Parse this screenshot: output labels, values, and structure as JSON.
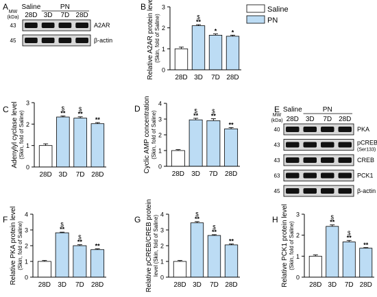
{
  "colors": {
    "saline": "#ffffff",
    "pn": "#bcdcf4",
    "band": "#111111",
    "blot_bg": "#d8d8d8"
  },
  "legend": {
    "saline": "Saline",
    "pn": "PN"
  },
  "blot_A": {
    "letter": "A",
    "mw_header": [
      "MW",
      "(kDa)"
    ],
    "group_labels": {
      "saline": "Saline",
      "pn": "PN"
    },
    "lanes": [
      "28D",
      "3D",
      "7D",
      "28D"
    ],
    "rows": [
      {
        "mw": "43",
        "label": "A2AR",
        "sub": ""
      },
      {
        "mw": "45",
        "label": "β-actin",
        "sub": ""
      }
    ]
  },
  "blot_E": {
    "letter": "E",
    "mw_header": [
      "MW",
      "(kDa)"
    ],
    "group_labels": {
      "saline": "Saline",
      "pn": "PN"
    },
    "lanes": [
      "28D",
      "3D",
      "7D",
      "28D"
    ],
    "rows": [
      {
        "mw": "40",
        "label": "PKA",
        "sub": ""
      },
      {
        "mw": "43",
        "label": "pCREB",
        "sub": "(Ser133)"
      },
      {
        "mw": "43",
        "label": "CREB",
        "sub": ""
      },
      {
        "mw": "63",
        "label": "PCK1",
        "sub": ""
      },
      {
        "mw": "45",
        "label": "β-actin",
        "sub": ""
      }
    ]
  },
  "chart_data": [
    {
      "panel": "B",
      "type": "bar",
      "ylabel": "Relative A2AR protein level",
      "ylabel_sub": "(Skin, fold of Saline)",
      "categories": [
        "28D",
        "3D",
        "7D",
        "28D"
      ],
      "groups": [
        "saline",
        "pn",
        "pn",
        "pn"
      ],
      "values": [
        1.0,
        2.1,
        1.65,
        1.6
      ],
      "errors": [
        0.08,
        0.05,
        0.06,
        0.05
      ],
      "sig": [
        "",
        "**",
        "*",
        "*"
      ],
      "dollar": [
        "",
        "$",
        "",
        ""
      ],
      "ylim": [
        0,
        3
      ],
      "yticks": [
        0,
        1,
        2,
        3
      ]
    },
    {
      "panel": "C",
      "type": "bar",
      "ylabel": "Adenylyl cyclase level",
      "ylabel_sub": "(Skin, fold of Saline)",
      "categories": [
        "28D",
        "3D",
        "7D",
        "28D"
      ],
      "groups": [
        "saline",
        "pn",
        "pn",
        "pn"
      ],
      "values": [
        1.0,
        2.33,
        2.28,
        2.02
      ],
      "errors": [
        0.08,
        0.05,
        0.06,
        0.05
      ],
      "sig": [
        "",
        "**",
        "**",
        "**"
      ],
      "dollar": [
        "",
        "$",
        "$",
        ""
      ],
      "ylim": [
        0,
        3
      ],
      "yticks": [
        0,
        1,
        2,
        3
      ]
    },
    {
      "panel": "D",
      "type": "bar",
      "ylabel": "Cyclic AMP concentration",
      "ylabel_sub": "(Skin, fold of Saline)",
      "categories": [
        "28D",
        "3D",
        "7D",
        "28D"
      ],
      "groups": [
        "saline",
        "pn",
        "pn",
        "pn"
      ],
      "values": [
        1.0,
        2.95,
        2.9,
        2.38
      ],
      "errors": [
        0.06,
        0.1,
        0.12,
        0.08
      ],
      "sig": [
        "",
        "**",
        "**",
        "**"
      ],
      "dollar": [
        "",
        "$",
        "$",
        ""
      ],
      "ylim": [
        0,
        4
      ],
      "yticks": [
        0,
        1,
        2,
        3,
        4
      ]
    },
    {
      "panel": "F",
      "type": "bar",
      "ylabel": "Relative PKA protein level",
      "ylabel_sub": "(Skin, fold of Saline)",
      "categories": [
        "28D",
        "3D",
        "7D",
        "28D"
      ],
      "groups": [
        "saline",
        "pn",
        "pn",
        "pn"
      ],
      "values": [
        1.0,
        2.82,
        2.0,
        1.75
      ],
      "errors": [
        0.06,
        0.04,
        0.06,
        0.05
      ],
      "sig": [
        "",
        "**",
        "**",
        "**"
      ],
      "dollar": [
        "",
        "$",
        "$",
        ""
      ],
      "ylim": [
        0,
        4
      ],
      "yticks": [
        0,
        1,
        2,
        3,
        4
      ]
    },
    {
      "panel": "G",
      "type": "bar",
      "ylabel": "Relative pCREB/CREB protein",
      "ylabel_sub": "level (Skin, fold of Saline)",
      "categories": [
        "28D",
        "3D",
        "7D",
        "28D"
      ],
      "groups": [
        "saline",
        "pn",
        "pn",
        "pn"
      ],
      "values": [
        1.0,
        3.45,
        2.65,
        2.05
      ],
      "errors": [
        0.06,
        0.08,
        0.05,
        0.06
      ],
      "sig": [
        "",
        "**",
        "**",
        "**"
      ],
      "dollar": [
        "",
        "$",
        "$",
        ""
      ],
      "ylim": [
        0,
        4
      ],
      "yticks": [
        0,
        1,
        2,
        3,
        4
      ]
    },
    {
      "panel": "H",
      "type": "bar",
      "ylabel": "Relative PCK1 protein level",
      "ylabel_sub": "(Skin, fold of Saline)",
      "categories": [
        "28D",
        "3D",
        "7D",
        "28D"
      ],
      "groups": [
        "saline",
        "pn",
        "pn",
        "pn"
      ],
      "values": [
        1.0,
        2.42,
        1.68,
        1.38
      ],
      "errors": [
        0.06,
        0.07,
        0.07,
        0.03
      ],
      "sig": [
        "",
        "**",
        "**",
        "**"
      ],
      "dollar": [
        "",
        "$",
        "$",
        ""
      ],
      "ylim": [
        0,
        3
      ],
      "yticks": [
        0,
        1,
        2,
        3
      ]
    }
  ]
}
